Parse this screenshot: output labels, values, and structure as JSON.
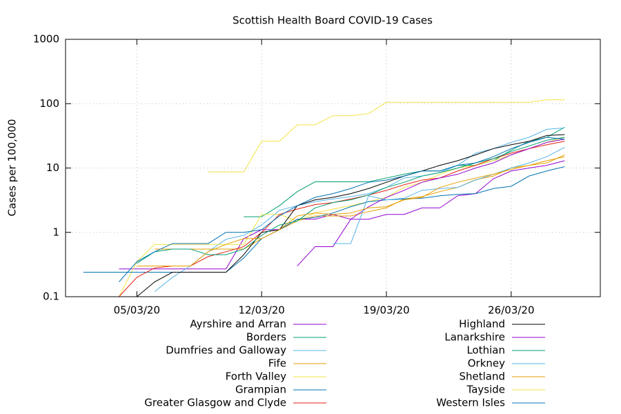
{
  "chart_data": {
    "type": "line",
    "title": "Scottish Health Board COVID-19 Cases",
    "y_label": "Cases per 100,000",
    "y_scale": "log",
    "grid": true,
    "legend": "bottom",
    "xlim": [
      "01/03/20",
      "31/03/20"
    ],
    "xticks": [
      "05/03/20",
      "12/03/20",
      "19/03/20",
      "26/03/20"
    ],
    "ylim": [
      0.1,
      1000
    ],
    "yticks": [
      0.1,
      1,
      10,
      100,
      1000
    ],
    "x": [
      "02/03/20",
      "03/03/20",
      "04/03/20",
      "05/03/20",
      "06/03/20",
      "07/03/20",
      "08/03/20",
      "09/03/20",
      "10/03/20",
      "11/03/20",
      "12/03/20",
      "13/03/20",
      "14/03/20",
      "15/03/20",
      "16/03/20",
      "17/03/20",
      "18/03/20",
      "19/03/20",
      "20/03/20",
      "21/03/20",
      "22/03/20",
      "23/03/20",
      "24/03/20",
      "25/03/20",
      "26/03/20",
      "27/03/20",
      "28/03/20",
      "29/03/20"
    ],
    "series": [
      {
        "name": "Ayrshire and Arran",
        "color": "#9400d3",
        "values": [
          null,
          null,
          0.27,
          0.27,
          0.27,
          0.27,
          0.27,
          0.27,
          0.27,
          0.8,
          1.1,
          1.1,
          1.6,
          1.6,
          1.9,
          1.6,
          1.6,
          1.9,
          1.9,
          2.4,
          2.4,
          3.7,
          4,
          6.8,
          9,
          10,
          11,
          13
        ]
      },
      {
        "name": "Borders",
        "color": "#009e73",
        "values": [
          null,
          null,
          null,
          null,
          null,
          null,
          null,
          null,
          null,
          1.75,
          1.75,
          2.6,
          4.3,
          6.1,
          6.1,
          6.1,
          6.1,
          7,
          8,
          9,
          9,
          11,
          11,
          13,
          19,
          26,
          30,
          43
        ]
      },
      {
        "name": "Dumfries and Galloway",
        "color": "#56b4e9",
        "values": [
          null,
          null,
          null,
          null,
          0.12,
          0.2,
          0.3,
          0.5,
          0.78,
          0.9,
          1.3,
          2.2,
          2.6,
          3,
          3.3,
          3.6,
          4,
          5,
          7,
          7.5,
          8.5,
          11,
          17,
          20,
          25,
          30,
          40,
          42
        ]
      },
      {
        "name": "Fife",
        "color": "#e69f00",
        "values": [
          null,
          null,
          null,
          null,
          0.55,
          0.55,
          0.55,
          0.55,
          0.55,
          0.55,
          0.8,
          1.1,
          1.5,
          1.8,
          1.8,
          1.8,
          2.1,
          2.4,
          3.3,
          3.6,
          4.3,
          5,
          6.6,
          7.5,
          10,
          11,
          13,
          15
        ]
      },
      {
        "name": "Forth Valley",
        "color": "#f0e442",
        "values": [
          null,
          null,
          0.1,
          0.35,
          0.65,
          0.65,
          0.65,
          0.65,
          0.65,
          0.65,
          1.9,
          1.9,
          1.5,
          2,
          2.3,
          2.6,
          3,
          3.5,
          5,
          6,
          8,
          10,
          11,
          13,
          16,
          20,
          25,
          30
        ]
      },
      {
        "name": "Grampian",
        "color": "#0072b2",
        "values": [
          0.24,
          0.24,
          0.24,
          0.24,
          0.24,
          0.24,
          0.24,
          0.24,
          0.24,
          0.4,
          0.8,
          1.1,
          1.6,
          1.7,
          2,
          2.5,
          3,
          3.2,
          3.3,
          3.4,
          3.7,
          3.9,
          4,
          4.8,
          5.2,
          7.5,
          9,
          10.5
        ]
      },
      {
        "name": "Greater Glasgow and Clyde",
        "color": "#e51e10",
        "values": [
          null,
          null,
          0.1,
          0.2,
          0.28,
          0.3,
          0.3,
          0.42,
          0.5,
          0.6,
          1,
          1.9,
          2.3,
          2.7,
          2.9,
          3.3,
          3.8,
          4.5,
          5.5,
          6.5,
          7,
          9,
          11,
          14,
          17,
          20,
          23,
          26
        ]
      },
      {
        "name": "Highland",
        "color": "#000000",
        "values": [
          null,
          null,
          null,
          0.1,
          0.17,
          0.24,
          0.24,
          0.24,
          0.24,
          0.45,
          1,
          1.1,
          2.6,
          3.2,
          3.5,
          4,
          4.8,
          6,
          7.5,
          9,
          11,
          13,
          16,
          20,
          23,
          26,
          32,
          33
        ]
      },
      {
        "name": "Lanarkshire",
        "color": "#9400d3",
        "values": [
          null,
          null,
          null,
          null,
          null,
          null,
          null,
          null,
          null,
          null,
          null,
          null,
          0.3,
          0.6,
          0.6,
          1.6,
          2.5,
          3.5,
          4.5,
          6,
          7,
          8,
          10,
          12,
          16,
          20,
          25,
          28
        ]
      },
      {
        "name": "Lothian",
        "color": "#009e73",
        "values": [
          null,
          null,
          null,
          0.33,
          0.5,
          0.55,
          0.55,
          0.45,
          0.45,
          0.55,
          0.9,
          1.3,
          1.5,
          2.4,
          2.9,
          3.2,
          3.8,
          5,
          6,
          7.5,
          8.5,
          10,
          12,
          14,
          18,
          22,
          27,
          30
        ]
      },
      {
        "name": "Orkney",
        "color": "#56b4e9",
        "values": [
          null,
          null,
          null,
          null,
          null,
          null,
          null,
          null,
          null,
          null,
          null,
          null,
          null,
          null,
          0.67,
          0.67,
          3.7,
          3.2,
          3.4,
          4.5,
          4.8,
          5,
          6.5,
          8,
          10,
          12,
          15,
          21
        ]
      },
      {
        "name": "Shetland",
        "color": "#e69f00",
        "values": [
          null,
          null,
          null,
          0.3,
          0.3,
          0.3,
          0.3,
          0.5,
          0.65,
          0.8,
          0.8,
          1.1,
          1.8,
          2,
          1.9,
          2,
          2.4,
          2.5,
          3.2,
          3.5,
          5,
          6,
          7,
          8,
          9.5,
          11,
          12,
          16
        ]
      },
      {
        "name": "Tayside",
        "color": "#f0e442",
        "values": [
          null,
          null,
          null,
          null,
          null,
          null,
          null,
          8.7,
          8.7,
          8.7,
          26,
          26,
          47,
          47,
          65,
          65,
          70,
          105,
          105,
          105,
          105,
          105,
          105,
          105,
          105,
          105,
          115,
          115
        ]
      },
      {
        "name": "Western Isles",
        "color": "#0072b2",
        "values": [
          null,
          null,
          0.17,
          0.35,
          0.5,
          0.67,
          0.67,
          0.67,
          1,
          1,
          1.1,
          1.8,
          2.6,
          3.5,
          4,
          4.8,
          6,
          6.5,
          7.5,
          9,
          9,
          11,
          12,
          15,
          20,
          25,
          30,
          28
        ]
      }
    ]
  }
}
